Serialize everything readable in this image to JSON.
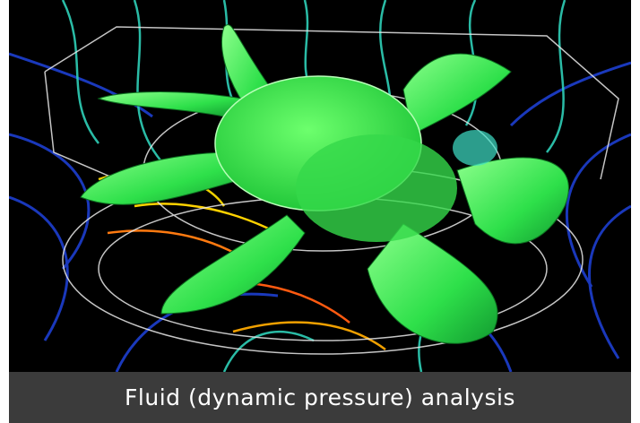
{
  "caption": "Fluid (dynamic pressure) analysis"
}
